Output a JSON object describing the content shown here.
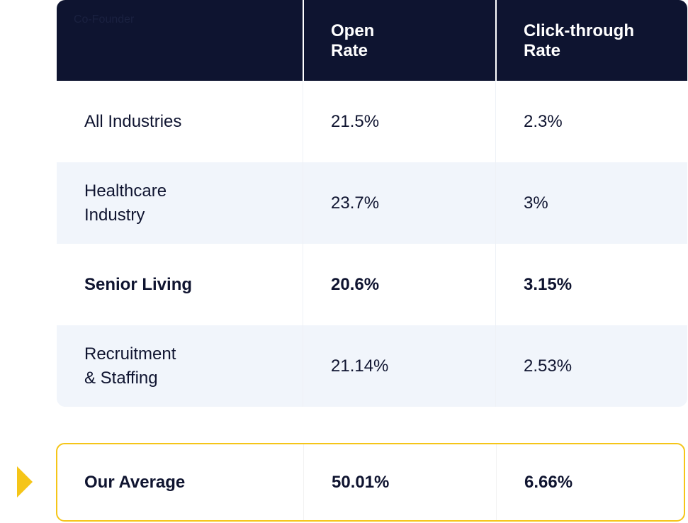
{
  "header": {
    "first_label": "Co-Founder",
    "col2": [
      "Open",
      "Rate"
    ],
    "col3": [
      "Click-through",
      "Rate"
    ]
  },
  "rows": [
    {
      "name": [
        "All Industries"
      ],
      "open": "21.5%",
      "ctr": "2.3%"
    },
    {
      "name": [
        "Healthcare",
        "Industry"
      ],
      "open": "23.7%",
      "ctr": "3%"
    },
    {
      "name": [
        "Senior Living"
      ],
      "open": "20.6%",
      "ctr": "3.15%"
    },
    {
      "name": [
        "Recruitment",
        "& Staffing"
      ],
      "open": "21.14%",
      "ctr": "2.53%"
    }
  ],
  "average": {
    "name": "Our Average",
    "open": "50.01%",
    "ctr": "6.66%"
  },
  "colors": {
    "header_bg": "#0e1430",
    "alt_row_bg": "#f1f5fb",
    "accent": "#f5c518"
  },
  "icons": {
    "pointer": "triangle-arrow-right-icon"
  }
}
